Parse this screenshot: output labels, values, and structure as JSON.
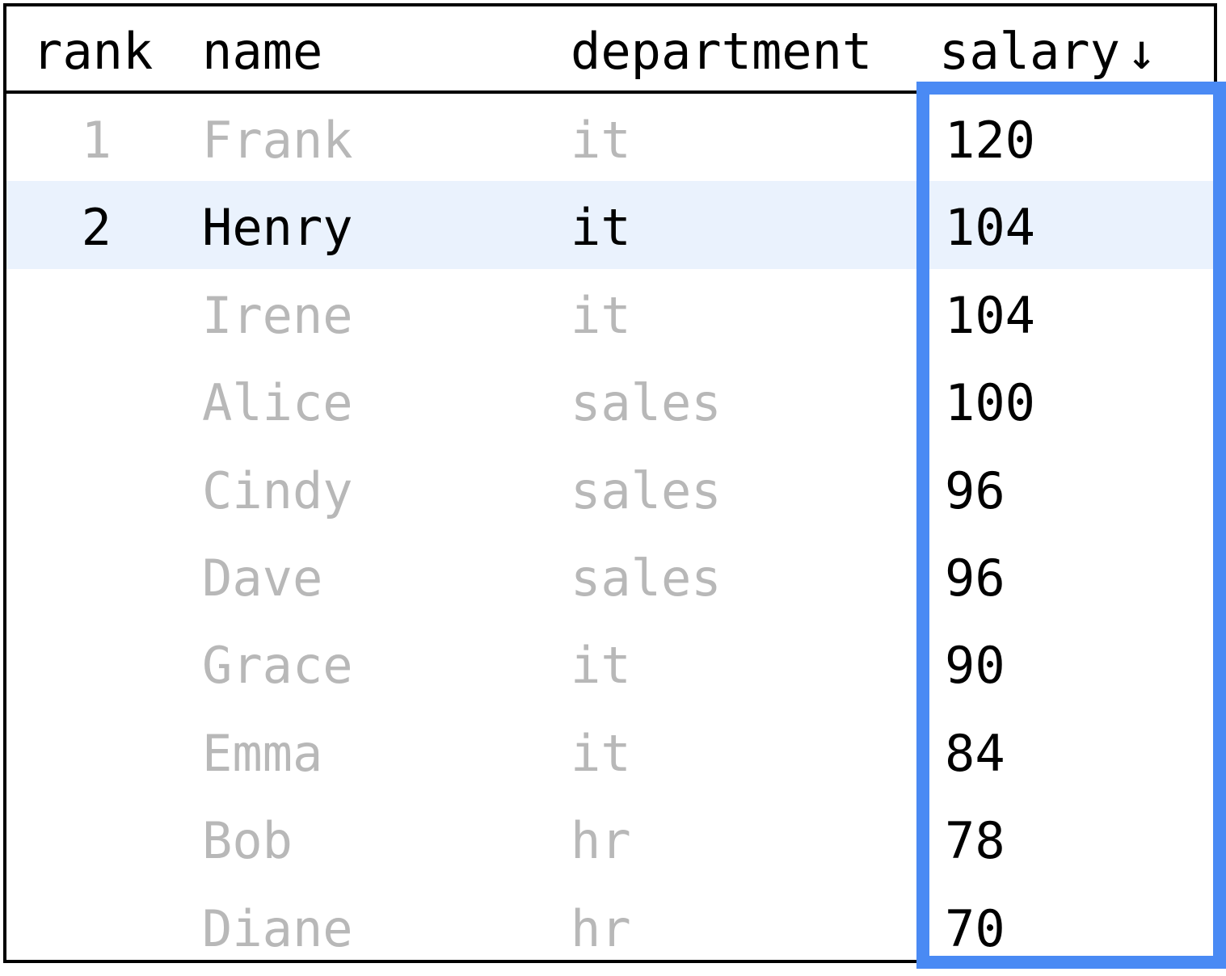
{
  "table": {
    "columns": {
      "rank": "rank",
      "name": "name",
      "department": "department",
      "salary": "salary",
      "sort_indicator": "↓"
    },
    "sort": {
      "column": "salary",
      "direction": "descending"
    },
    "rows": [
      {
        "rank": "1",
        "name": "Frank",
        "department": "it",
        "salary": "120"
      },
      {
        "rank": "2",
        "name": "Henry",
        "department": "it",
        "salary": "104"
      },
      {
        "rank": "",
        "name": "Irene",
        "department": "it",
        "salary": "104"
      },
      {
        "rank": "",
        "name": "Alice",
        "department": "sales",
        "salary": "100"
      },
      {
        "rank": "",
        "name": "Cindy",
        "department": "sales",
        "salary": "96"
      },
      {
        "rank": "",
        "name": "Dave",
        "department": "sales",
        "salary": "96"
      },
      {
        "rank": "",
        "name": "Grace",
        "department": "it",
        "salary": "90"
      },
      {
        "rank": "",
        "name": "Emma",
        "department": "it",
        "salary": "84"
      },
      {
        "rank": "",
        "name": "Bob",
        "department": "hr",
        "salary": "78"
      },
      {
        "rank": "",
        "name": "Diane",
        "department": "hr",
        "salary": "70"
      }
    ]
  },
  "state": {
    "active_row": 1,
    "highlighted_column": "salary"
  },
  "colors": {
    "highlight_row": "#eaf2fd",
    "highlight_column_border": "#4a8af4",
    "muted_text": "#b8b8b8",
    "text": "#000000"
  }
}
